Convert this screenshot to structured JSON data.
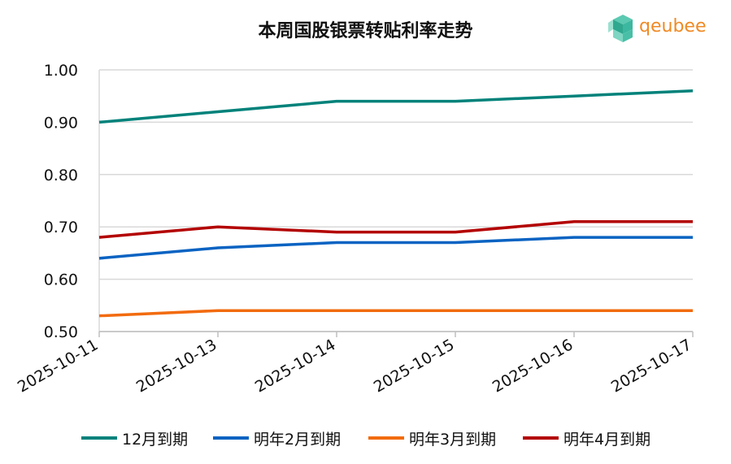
{
  "chart_data": {
    "type": "line",
    "title": "本周国股银票转贴利率走势",
    "categories": [
      "2025-10-11",
      "2025-10-13",
      "2025-10-14",
      "2025-10-15",
      "2025-10-16",
      "2025-10-17"
    ],
    "yticks": [
      "1.00",
      "0.90",
      "0.80",
      "0.70",
      "0.60",
      "0.50"
    ],
    "ylim": [
      0.5,
      1.0
    ],
    "grid": true,
    "legend_position": "bottom",
    "series": [
      {
        "name": "12月到期",
        "color": "#00827a",
        "values": [
          0.9,
          0.92,
          0.94,
          0.94,
          0.95,
          0.96
        ]
      },
      {
        "name": "明年2月到期",
        "color": "#0a63c2",
        "values": [
          0.64,
          0.66,
          0.67,
          0.67,
          0.68,
          0.68
        ]
      },
      {
        "name": "明年3月到期",
        "color": "#f26b0f",
        "values": [
          0.53,
          0.54,
          0.54,
          0.54,
          0.54,
          0.54
        ]
      },
      {
        "name": "明年4月到期",
        "color": "#b30000",
        "values": [
          0.68,
          0.7,
          0.69,
          0.69,
          0.71,
          0.71
        ]
      }
    ]
  },
  "logo": {
    "text": "qeubee",
    "color": "#f08a24",
    "icon_color": "#3cb8a0"
  }
}
